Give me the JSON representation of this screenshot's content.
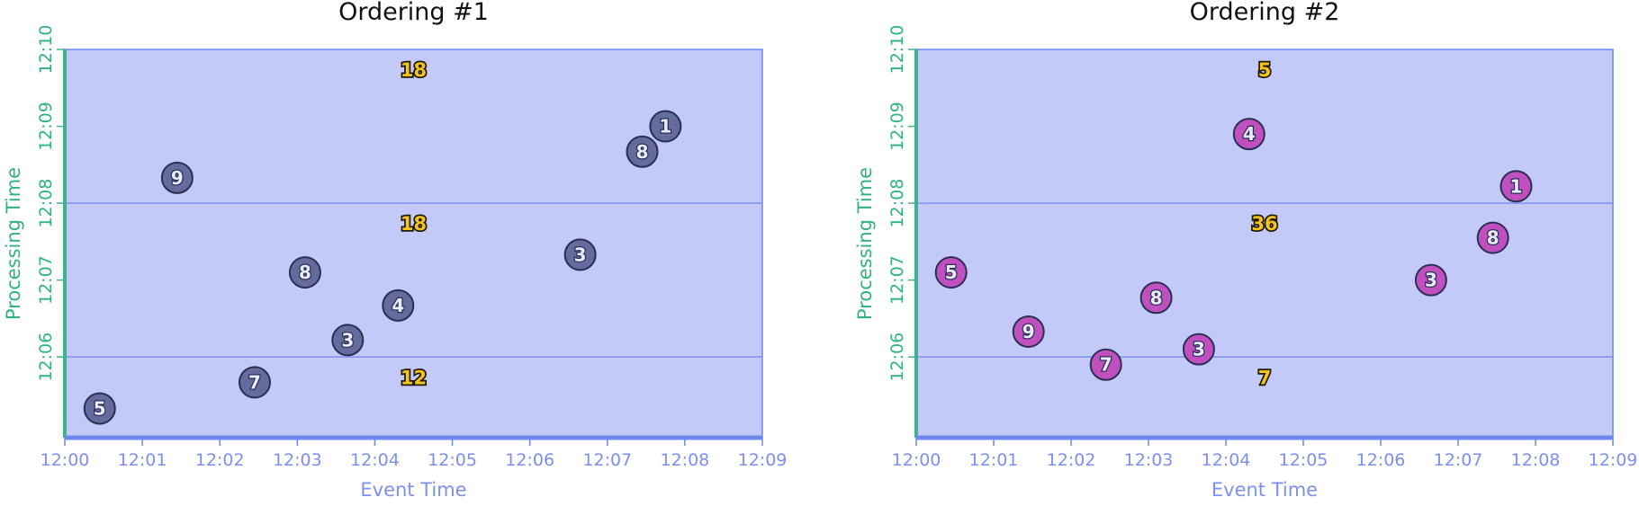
{
  "chart_data": [
    {
      "type": "scatter",
      "title": "Ordering #1",
      "xlabel": "Event Time",
      "ylabel": "Processing Time",
      "x_ticks": [
        "12:00",
        "12:01",
        "12:02",
        "12:03",
        "12:04",
        "12:05",
        "12:06",
        "12:07",
        "12:08",
        "12:09"
      ],
      "y_ticks": [
        "12:06",
        "12:07",
        "12:08",
        "12:09",
        "12:10"
      ],
      "xlim": [
        0,
        9
      ],
      "ylim": [
        4.95,
        10
      ],
      "window_lines": [
        6,
        8
      ],
      "point_color": "#646c9e",
      "points": [
        {
          "x": 0.45,
          "y": 5.33,
          "label": "5"
        },
        {
          "x": 1.45,
          "y": 8.33,
          "label": "9"
        },
        {
          "x": 2.45,
          "y": 5.67,
          "label": "7"
        },
        {
          "x": 3.1,
          "y": 7.1,
          "label": "8"
        },
        {
          "x": 3.65,
          "y": 6.22,
          "label": "3"
        },
        {
          "x": 4.3,
          "y": 6.67,
          "label": "4"
        },
        {
          "x": 6.65,
          "y": 7.33,
          "label": "3"
        },
        {
          "x": 7.45,
          "y": 8.67,
          "label": "8"
        },
        {
          "x": 7.75,
          "y": 9.0,
          "label": "1"
        }
      ],
      "sums": [
        {
          "x": 4.5,
          "y": 9.73,
          "label": "18"
        },
        {
          "x": 4.5,
          "y": 7.73,
          "label": "18"
        },
        {
          "x": 4.5,
          "y": 5.73,
          "label": "12"
        }
      ]
    },
    {
      "type": "scatter",
      "title": "Ordering #2",
      "xlabel": "Event Time",
      "ylabel": "Processing Time",
      "x_ticks": [
        "12:00",
        "12:01",
        "12:02",
        "12:03",
        "12:04",
        "12:05",
        "12:06",
        "12:07",
        "12:08",
        "12:09"
      ],
      "y_ticks": [
        "12:06",
        "12:07",
        "12:08",
        "12:09",
        "12:10"
      ],
      "xlim": [
        0,
        9
      ],
      "ylim": [
        4.95,
        10
      ],
      "window_lines": [
        6,
        8
      ],
      "point_color": "#c04fc0",
      "points": [
        {
          "x": 0.45,
          "y": 7.1,
          "label": "5"
        },
        {
          "x": 1.45,
          "y": 6.33,
          "label": "9"
        },
        {
          "x": 2.45,
          "y": 5.9,
          "label": "7"
        },
        {
          "x": 3.1,
          "y": 6.77,
          "label": "8"
        },
        {
          "x": 3.65,
          "y": 6.1,
          "label": "3"
        },
        {
          "x": 4.3,
          "y": 8.9,
          "label": "4"
        },
        {
          "x": 6.65,
          "y": 7.0,
          "label": "3"
        },
        {
          "x": 7.45,
          "y": 7.55,
          "label": "8"
        },
        {
          "x": 7.75,
          "y": 8.22,
          "label": "1"
        }
      ],
      "sums": [
        {
          "x": 4.5,
          "y": 9.73,
          "label": "5"
        },
        {
          "x": 4.5,
          "y": 7.73,
          "label": "36"
        },
        {
          "x": 4.5,
          "y": 5.73,
          "label": "7"
        }
      ]
    }
  ]
}
